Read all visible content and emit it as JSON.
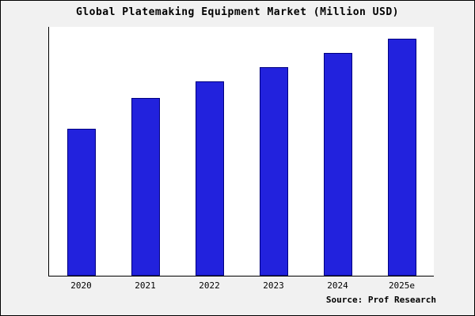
{
  "title": "Global Platemaking Equipment Market (Million USD)",
  "source_note": "Source: Prof Research",
  "colors": {
    "bar_fill": "#2222dd",
    "bar_border": "#000080",
    "figure_background": "#f1f1f1",
    "plot_background": "#ffffff"
  },
  "chart_data": {
    "type": "bar",
    "title": "Global Platemaking Equipment Market (Million USD)",
    "categories": [
      "2020",
      "2021",
      "2022",
      "2023",
      "2024",
      "2025e"
    ],
    "values": [
      62,
      75,
      82,
      88,
      94,
      100
    ],
    "xlabel": "",
    "ylabel": "",
    "ylim": [
      0,
      105
    ],
    "grid": false,
    "legend": false,
    "y_axis_labels_visible": false,
    "annotation": "Source: Prof Research"
  }
}
